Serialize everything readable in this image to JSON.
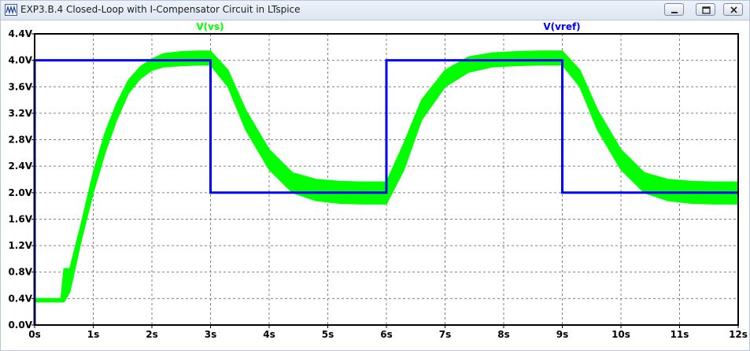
{
  "window": {
    "title": "EXP3.B.4 Closed-Loop with I-Compensator Circuit in LTspice",
    "icon": "ltspice-waveform-icon",
    "buttons": [
      "minimize-icon",
      "restore-icon",
      "close-icon"
    ]
  },
  "chart_data": {
    "type": "line",
    "title": "",
    "xlabel": "",
    "ylabel": "",
    "xlim": [
      0,
      12
    ],
    "ylim": [
      0,
      4.4
    ],
    "grid": true,
    "legend_placement": "top",
    "x_ticks": [
      0,
      1,
      2,
      3,
      4,
      5,
      6,
      7,
      8,
      9,
      10,
      11,
      12
    ],
    "x_tick_labels": [
      "0s",
      "1s",
      "2s",
      "3s",
      "4s",
      "5s",
      "6s",
      "7s",
      "8s",
      "9s",
      "10s",
      "11s",
      "12s"
    ],
    "y_ticks": [
      0,
      0.4,
      0.8,
      1.2,
      1.6,
      2.0,
      2.4,
      2.8,
      3.2,
      3.6,
      4.0,
      4.4
    ],
    "y_tick_labels": [
      "0.0V",
      "0.4V",
      "0.8V",
      "1.2V",
      "1.6V",
      "2.0V",
      "2.4V",
      "2.8V",
      "3.2V",
      "3.6V",
      "4.0V",
      "4.4V"
    ],
    "series": [
      {
        "name": "V(vs)",
        "color": "#00ff00",
        "style": "band",
        "x": [
          0,
          0.1,
          0.3,
          0.45,
          0.5,
          0.6,
          0.8,
          1.0,
          1.2,
          1.4,
          1.6,
          1.8,
          2.0,
          2.2,
          2.5,
          2.8,
          3.0,
          3.3,
          3.6,
          4.0,
          4.4,
          4.8,
          5.2,
          5.6,
          6.0,
          6.3,
          6.6,
          7.0,
          7.4,
          7.8,
          8.2,
          8.6,
          9.0,
          9.3,
          9.6,
          10.0,
          10.4,
          10.8,
          11.2,
          11.6,
          12.0
        ],
        "upper": [
          0.4,
          0.4,
          0.4,
          0.4,
          0.85,
          0.85,
          1.55,
          2.3,
          2.9,
          3.35,
          3.7,
          3.9,
          4.02,
          4.1,
          4.13,
          4.14,
          4.14,
          3.85,
          3.25,
          2.65,
          2.3,
          2.2,
          2.17,
          2.16,
          2.16,
          2.75,
          3.4,
          3.85,
          4.05,
          4.11,
          4.13,
          4.14,
          4.14,
          3.85,
          3.25,
          2.65,
          2.3,
          2.2,
          2.17,
          2.16,
          2.16
        ],
        "lower": [
          0.35,
          0.35,
          0.35,
          0.35,
          0.35,
          0.5,
          1.3,
          2.0,
          2.6,
          3.1,
          3.5,
          3.72,
          3.85,
          3.9,
          3.92,
          3.93,
          3.93,
          3.6,
          2.95,
          2.35,
          2.0,
          1.88,
          1.84,
          1.83,
          1.83,
          2.35,
          3.1,
          3.6,
          3.82,
          3.9,
          3.92,
          3.93,
          3.93,
          3.6,
          2.95,
          2.35,
          2.0,
          1.88,
          1.84,
          1.83,
          1.83
        ]
      },
      {
        "name": "V(vref)",
        "color": "#0000ff",
        "style": "step",
        "x": [
          0,
          0,
          3,
          3,
          6,
          6,
          9,
          9,
          12
        ],
        "y": [
          0,
          4.0,
          4.0,
          2.0,
          2.0,
          4.0,
          4.0,
          2.0,
          2.0
        ]
      }
    ]
  }
}
